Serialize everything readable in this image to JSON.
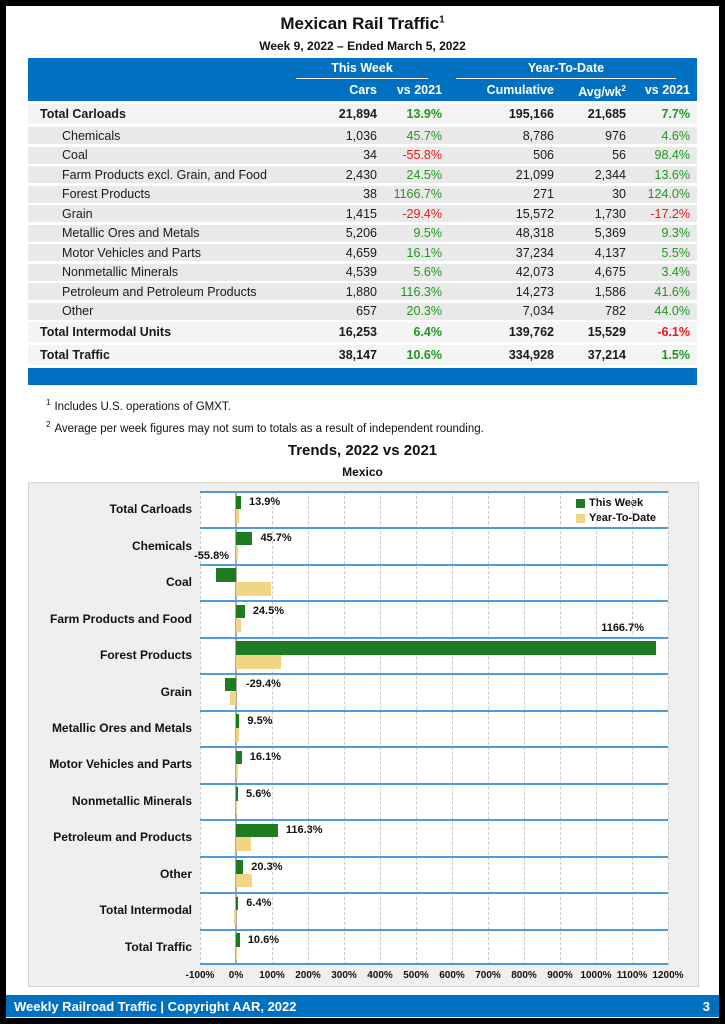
{
  "colors": {
    "header_blue": "#0070c0",
    "bar_green": "#1e7b22",
    "bar_yellow": "#f0d584",
    "positive_text": "#21961f",
    "negative_text": "#ee1515",
    "chart_row_line_blue": "#4f9ad8"
  },
  "page": {
    "title": "Mexican Rail Traffic",
    "title_sup": "1",
    "subtitle": "Week 9, 2022 – Ended March 5, 2022"
  },
  "table": {
    "group_this_week": "This Week",
    "group_ytd": "Year-To-Date",
    "col_cars": "Cars",
    "col_cars_vs": "vs 2021",
    "col_cumulative": "Cumulative",
    "col_avg": "Avg/wk",
    "col_avg_sup": "2",
    "col_ytd_vs": "vs 2021",
    "rows": [
      {
        "label": "Total Carloads",
        "type": "total",
        "cars": "21,894",
        "cars_vs": "13.9%",
        "cumulative": "195,166",
        "avg_wk": "21,685",
        "ytd_vs": "7.7%"
      },
      {
        "label": "Chemicals",
        "type": "commodity",
        "cars": "1,036",
        "cars_vs": "45.7%",
        "cumulative": "8,786",
        "avg_wk": "976",
        "ytd_vs": "4.6%"
      },
      {
        "label": "Coal",
        "type": "commodity",
        "cars": "34",
        "cars_vs": "-55.8%",
        "cumulative": "506",
        "avg_wk": "56",
        "ytd_vs": "98.4%"
      },
      {
        "label": "Farm Products excl. Grain, and Food",
        "type": "commodity",
        "cars": "2,430",
        "cars_vs": "24.5%",
        "cumulative": "21,099",
        "avg_wk": "2,344",
        "ytd_vs": "13.6%"
      },
      {
        "label": "Forest Products",
        "type": "commodity",
        "cars": "38",
        "cars_vs": "1166.7%",
        "cumulative": "271",
        "avg_wk": "30",
        "ytd_vs": "124.0%"
      },
      {
        "label": "Grain",
        "type": "commodity",
        "cars": "1,415",
        "cars_vs": "-29.4%",
        "cumulative": "15,572",
        "avg_wk": "1,730",
        "ytd_vs": "-17.2%"
      },
      {
        "label": "Metallic Ores and Metals",
        "type": "commodity",
        "cars": "5,206",
        "cars_vs": "9.5%",
        "cumulative": "48,318",
        "avg_wk": "5,369",
        "ytd_vs": "9.3%"
      },
      {
        "label": "Motor Vehicles and Parts",
        "type": "commodity",
        "cars": "4,659",
        "cars_vs": "16.1%",
        "cumulative": "37,234",
        "avg_wk": "4,137",
        "ytd_vs": "5.5%"
      },
      {
        "label": "Nonmetallic Minerals",
        "type": "commodity",
        "cars": "4,539",
        "cars_vs": "5.6%",
        "cumulative": "42,073",
        "avg_wk": "4,675",
        "ytd_vs": "3.4%"
      },
      {
        "label": "Petroleum and Petroleum Products",
        "type": "commodity",
        "cars": "1,880",
        "cars_vs": "116.3%",
        "cumulative": "14,273",
        "avg_wk": "1,586",
        "ytd_vs": "41.6%"
      },
      {
        "label": "Other",
        "type": "commodity",
        "cars": "657",
        "cars_vs": "20.3%",
        "cumulative": "7,034",
        "avg_wk": "782",
        "ytd_vs": "44.0%"
      },
      {
        "label": "Total Intermodal Units",
        "type": "total",
        "cars": "16,253",
        "cars_vs": "6.4%",
        "cumulative": "139,762",
        "avg_wk": "15,529",
        "ytd_vs": "-6.1%"
      },
      {
        "label": "Total Traffic",
        "type": "total",
        "cars": "38,147",
        "cars_vs": "10.6%",
        "cumulative": "334,928",
        "avg_wk": "37,214",
        "ytd_vs": "1.5%"
      }
    ]
  },
  "footnotes": [
    {
      "sup": "1",
      "text": "Includes U.S. operations of GMXT."
    },
    {
      "sup": "2",
      "text": "Average per week figures may not sum to totals as a result of independent rounding."
    }
  ],
  "chart_data": {
    "type": "bar",
    "orientation": "horizontal",
    "title": "Trends, 2022 vs 2021",
    "subtitle": "Mexico",
    "categories": [
      "Total Carloads",
      "Chemicals",
      "Coal",
      "Farm Products and Food",
      "Forest Products",
      "Grain",
      "Metallic Ores and Metals",
      "Motor Vehicles and Parts",
      "Nonmetallic Minerals",
      "Petroleum and Products",
      "Other",
      "Total Intermodal",
      "Total Traffic"
    ],
    "series": [
      {
        "name": "This Week",
        "values": [
          13.9,
          45.7,
          -55.8,
          24.5,
          1166.7,
          -29.4,
          9.5,
          16.1,
          5.6,
          116.3,
          20.3,
          6.4,
          10.6
        ]
      },
      {
        "name": "Year-To-Date",
        "values": [
          7.7,
          4.6,
          98.4,
          13.6,
          124.0,
          -17.2,
          9.3,
          5.5,
          3.4,
          41.6,
          44.0,
          -6.1,
          1.5
        ]
      }
    ],
    "data_labels": [
      "13.9%",
      "45.7%",
      "-55.8%",
      "24.5%",
      "1166.7%",
      "-29.4%",
      "9.5%",
      "16.1%",
      "5.6%",
      "116.3%",
      "20.3%",
      "6.4%",
      "10.6%"
    ],
    "label_placement": [
      "right",
      "right",
      "above-left",
      "right",
      "above-end",
      "right-of-zero",
      "right",
      "right",
      "right",
      "right",
      "right",
      "right",
      "right"
    ],
    "xlim": [
      -100,
      1200
    ],
    "x_ticks": [
      "-100%",
      "0%",
      "100%",
      "200%",
      "300%",
      "400%",
      "500%",
      "600%",
      "700%",
      "800%",
      "900%",
      "1000%",
      "1100%",
      "1200%"
    ],
    "legend_position": "top-right",
    "grid": "vertical-dashed"
  },
  "footer": {
    "left": "Weekly Railroad Traffic | Copyright AAR, 2022",
    "page_number": "3"
  }
}
